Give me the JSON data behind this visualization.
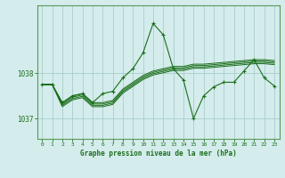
{
  "title": "Graphe pression niveau de la mer (hPa)",
  "bg_color": "#d4ecec",
  "grid_color": "#b8d8d8",
  "line_color": "#1a6e1a",
  "border_color": "#5a9a5a",
  "xlim": [
    -0.5,
    23.5
  ],
  "ylim": [
    1036.55,
    1039.5
  ],
  "yticks": [
    1037,
    1038
  ],
  "xticks": [
    0,
    1,
    2,
    3,
    4,
    5,
    6,
    7,
    8,
    9,
    10,
    11,
    12,
    13,
    14,
    15,
    16,
    17,
    18,
    19,
    20,
    21,
    22,
    23
  ],
  "peak_series": [
    1037.75,
    1037.75,
    1037.35,
    1037.5,
    1037.55,
    1037.35,
    1037.55,
    1037.6,
    1037.9,
    1038.1,
    1038.45,
    1039.1,
    1038.85,
    1038.1,
    1037.85,
    1037.0,
    1037.5,
    1037.7,
    1037.8,
    1037.8,
    1038.05,
    1038.3,
    1037.9,
    1037.72
  ],
  "band_series": [
    [
      1037.75,
      1037.75,
      1037.35,
      1037.5,
      1037.55,
      1037.35,
      1037.35,
      1037.4,
      1037.65,
      1037.8,
      1037.95,
      1038.05,
      1038.1,
      1038.15,
      1038.15,
      1038.2,
      1038.2,
      1038.22,
      1038.24,
      1038.26,
      1038.28,
      1038.3,
      1038.3,
      1038.28
    ],
    [
      1037.75,
      1037.75,
      1037.32,
      1037.47,
      1037.52,
      1037.32,
      1037.32,
      1037.37,
      1037.62,
      1037.77,
      1037.92,
      1038.02,
      1038.07,
      1038.12,
      1038.12,
      1038.17,
      1038.17,
      1038.19,
      1038.21,
      1038.23,
      1038.25,
      1038.27,
      1038.27,
      1038.25
    ],
    [
      1037.75,
      1037.75,
      1037.29,
      1037.44,
      1037.49,
      1037.29,
      1037.29,
      1037.34,
      1037.59,
      1037.74,
      1037.89,
      1037.99,
      1038.04,
      1038.09,
      1038.09,
      1038.14,
      1038.14,
      1038.16,
      1038.18,
      1038.2,
      1038.22,
      1038.24,
      1038.24,
      1038.22
    ],
    [
      1037.75,
      1037.75,
      1037.26,
      1037.41,
      1037.46,
      1037.26,
      1037.26,
      1037.31,
      1037.56,
      1037.71,
      1037.86,
      1037.96,
      1038.01,
      1038.06,
      1038.06,
      1038.11,
      1038.11,
      1038.13,
      1038.15,
      1038.17,
      1038.19,
      1038.21,
      1038.21,
      1038.19
    ]
  ]
}
